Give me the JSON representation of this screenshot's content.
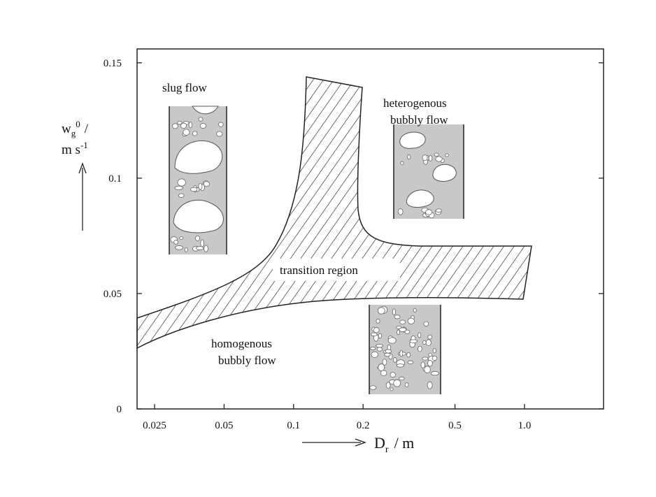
{
  "chart_data": {
    "type": "regime-map",
    "x_scale": "log",
    "xlim": [
      0.021,
      2.2
    ],
    "ylim": [
      0,
      0.156
    ],
    "xticks": [
      0.025,
      0.05,
      0.1,
      0.2,
      0.5,
      {
        "value": 1.0,
        "label": "1.0"
      }
    ],
    "yticks": [
      0,
      0.05,
      0.1,
      0.15
    ],
    "x_label": {
      "symbol": "D",
      "sub": "r",
      "unit": "/ m"
    },
    "y_label": {
      "symbol": "w",
      "sub": "g",
      "sup": "0",
      "sep": "/",
      "unit": "m s",
      "unit_sup": "-1"
    },
    "annotations": [
      {
        "lines": [
          "slug flow"
        ]
      },
      {
        "lines": [
          "heterogenous",
          "bubbly flow"
        ]
      },
      {
        "lines": [
          "transition region"
        ]
      },
      {
        "lines": [
          "homogenous",
          "bubbly flow"
        ]
      }
    ]
  }
}
